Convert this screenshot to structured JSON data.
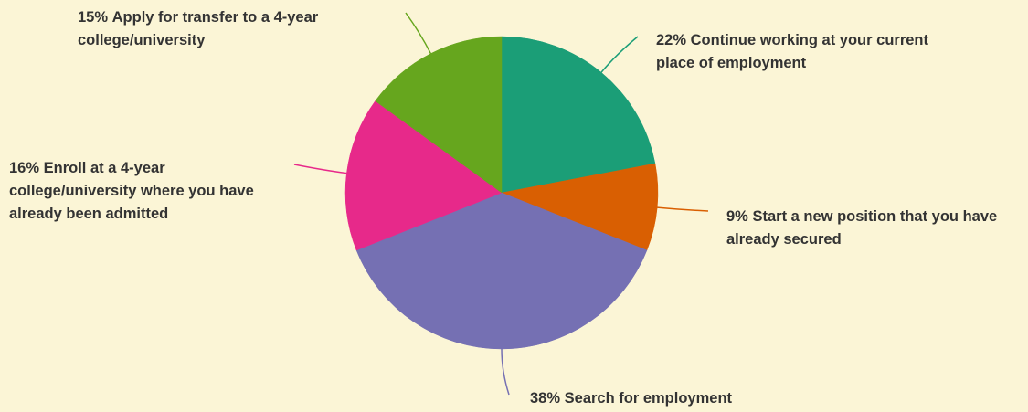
{
  "chart_data": {
    "type": "pie",
    "categories": [
      "Continue working at your current place of employment",
      "Start a new position that you have already secured",
      "Search for employment",
      "Enroll at a 4-year college/university where you have already been admitted",
      "Apply for transfer to a 4-year college/university"
    ],
    "values": [
      22,
      9,
      38,
      16,
      15
    ],
    "value_labels": [
      "22%",
      "9%",
      "38%",
      "16%",
      "15%"
    ],
    "colors": [
      "#1b9e77",
      "#d95f02",
      "#7570b3",
      "#e7298a",
      "#66a61e"
    ]
  }
}
